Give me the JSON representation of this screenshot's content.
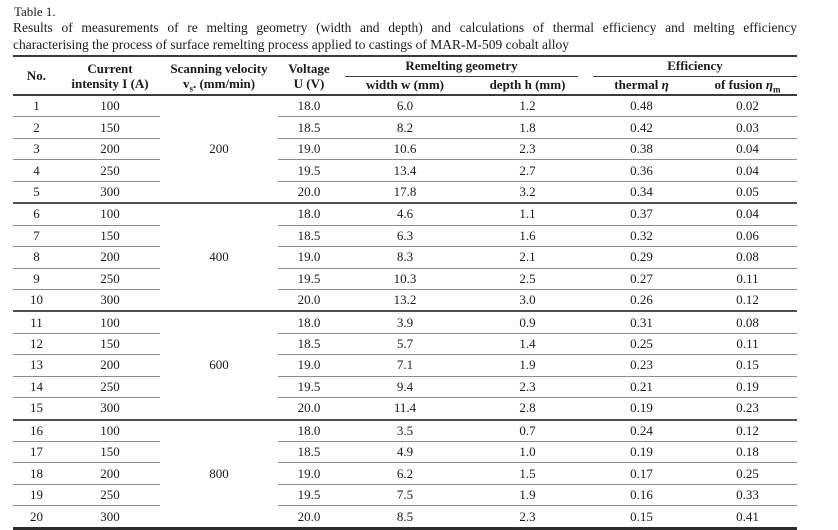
{
  "caption": {
    "label": "Table 1.",
    "line1": "Results of measurements of re melting geometry (width and depth) and calculations of thermal efficiency and melting efficiency",
    "line2": "characterising the process of surface remelting process applied to castings of MAR-M-509 cobalt alloy"
  },
  "table": {
    "headers": {
      "no": "No.",
      "current_line1": "Current",
      "current_line2": "intensity I (A)",
      "scanning_line1": "Scanning velocity",
      "scanning_symbol": "v",
      "scanning_sub": "s",
      "scanning_unit": ". (mm/min)",
      "voltage_line1": "Voltage",
      "voltage_line2": "U (V)",
      "group_geometry": "Remelting geometry",
      "group_efficiency": "Efficiency",
      "width": "width w (mm)",
      "depth": "depth h (mm)",
      "thermal_prefix": "thermal ",
      "eta": "η",
      "fusion_prefix": "of fusion ",
      "fusion_sub": "m"
    },
    "velocity_groups": [
      "200",
      "400",
      "600",
      "800"
    ],
    "rows": [
      {
        "no": "1",
        "current": "100",
        "voltage": "18.0",
        "width": "6.0",
        "depth": "1.2",
        "thermal": "0.48",
        "fusion": "0.02"
      },
      {
        "no": "2",
        "current": "150",
        "voltage": "18.5",
        "width": "8.2",
        "depth": "1.8",
        "thermal": "0.42",
        "fusion": "0.03"
      },
      {
        "no": "3",
        "current": "200",
        "voltage": "19.0",
        "width": "10.6",
        "depth": "2.3",
        "thermal": "0.38",
        "fusion": "0.04"
      },
      {
        "no": "4",
        "current": "250",
        "voltage": "19.5",
        "width": "13.4",
        "depth": "2.7",
        "thermal": "0.36",
        "fusion": "0.04"
      },
      {
        "no": "5",
        "current": "300",
        "voltage": "20.0",
        "width": "17.8",
        "depth": "3.2",
        "thermal": "0.34",
        "fusion": "0.05"
      },
      {
        "no": "6",
        "current": "100",
        "voltage": "18.0",
        "width": "4.6",
        "depth": "1.1",
        "thermal": "0.37",
        "fusion": "0.04"
      },
      {
        "no": "7",
        "current": "150",
        "voltage": "18.5",
        "width": "6.3",
        "depth": "1.6",
        "thermal": "0.32",
        "fusion": "0.06"
      },
      {
        "no": "8",
        "current": "200",
        "voltage": "19.0",
        "width": "8.3",
        "depth": "2.1",
        "thermal": "0.29",
        "fusion": "0.08"
      },
      {
        "no": "9",
        "current": "250",
        "voltage": "19.5",
        "width": "10.3",
        "depth": "2.5",
        "thermal": "0.27",
        "fusion": "0.11"
      },
      {
        "no": "10",
        "current": "300",
        "voltage": "20.0",
        "width": "13.2",
        "depth": "3.0",
        "thermal": "0.26",
        "fusion": "0.12"
      },
      {
        "no": "11",
        "current": "100",
        "voltage": "18.0",
        "width": "3.9",
        "depth": "0.9",
        "thermal": "0.31",
        "fusion": "0.08"
      },
      {
        "no": "12",
        "current": "150",
        "voltage": "18.5",
        "width": "5.7",
        "depth": "1.4",
        "thermal": "0.25",
        "fusion": "0.11"
      },
      {
        "no": "13",
        "current": "200",
        "voltage": "19.0",
        "width": "7.1",
        "depth": "1.9",
        "thermal": "0.23",
        "fusion": "0.15"
      },
      {
        "no": "14",
        "current": "250",
        "voltage": "19.5",
        "width": "9.4",
        "depth": "2.3",
        "thermal": "0.21",
        "fusion": "0.19"
      },
      {
        "no": "15",
        "current": "300",
        "voltage": "20.0",
        "width": "11.4",
        "depth": "2.8",
        "thermal": "0.19",
        "fusion": "0.23"
      },
      {
        "no": "16",
        "current": "100",
        "voltage": "18.0",
        "width": "3.5",
        "depth": "0.7",
        "thermal": "0.24",
        "fusion": "0.12"
      },
      {
        "no": "17",
        "current": "150",
        "voltage": "18.5",
        "width": "4.9",
        "depth": "1.0",
        "thermal": "0.19",
        "fusion": "0.18"
      },
      {
        "no": "18",
        "current": "200",
        "voltage": "19.0",
        "width": "6.2",
        "depth": "1.5",
        "thermal": "0.17",
        "fusion": "0.25"
      },
      {
        "no": "19",
        "current": "250",
        "voltage": "19.5",
        "width": "7.5",
        "depth": "1.9",
        "thermal": "0.16",
        "fusion": "0.33"
      },
      {
        "no": "20",
        "current": "300",
        "voltage": "20.0",
        "width": "8.5",
        "depth": "2.3",
        "thermal": "0.15",
        "fusion": "0.41"
      }
    ]
  }
}
